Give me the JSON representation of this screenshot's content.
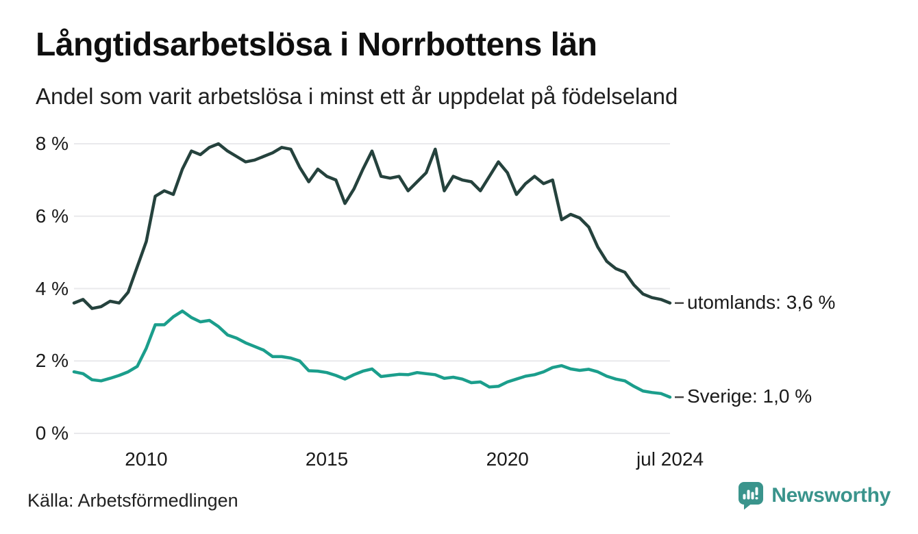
{
  "header": {
    "title": "Långtidsarbetslösa i Norrbottens län",
    "subtitle": "Andel som varit arbetslösa i minst ett år uppdelat på födelseland"
  },
  "footer": {
    "source": "Källa: Arbetsförmedlingen",
    "brand_name": "Newsworthy"
  },
  "colors": {
    "background": "#ffffff",
    "grid": "#e9e9ec",
    "text": "#1a1a1a",
    "brand_teal": "#3a948c",
    "connector": "#444444"
  },
  "chart_data": {
    "type": "line",
    "title": "Långtidsarbetslösa i Norrbottens län",
    "subtitle": "Andel som varit arbetslösa i minst ett år uppdelat på födelseland",
    "xlabel": "",
    "ylabel": "",
    "ylim": [
      0,
      8
    ],
    "xlim": [
      2008,
      2024.5
    ],
    "grid": "horizontal-only",
    "legend_position": "line-end-labels-right",
    "yticks": [
      {
        "value": 0,
        "label": "0 %"
      },
      {
        "value": 2,
        "label": "2 %"
      },
      {
        "value": 4,
        "label": "4 %"
      },
      {
        "value": 6,
        "label": "6 %"
      },
      {
        "value": 8,
        "label": "8 %"
      }
    ],
    "xticks": [
      {
        "value": 2010,
        "label": "2010"
      },
      {
        "value": 2015,
        "label": "2015"
      },
      {
        "value": 2020,
        "label": "2020"
      },
      {
        "value": 2024.5,
        "label": "jul 2024"
      }
    ],
    "x": [
      2008,
      2008.25,
      2008.5,
      2008.75,
      2009,
      2009.25,
      2009.5,
      2009.75,
      2010,
      2010.25,
      2010.5,
      2010.75,
      2011,
      2011.25,
      2011.5,
      2011.75,
      2012,
      2012.25,
      2012.5,
      2012.75,
      2013,
      2013.25,
      2013.5,
      2013.75,
      2014,
      2014.25,
      2014.5,
      2014.75,
      2015,
      2015.25,
      2015.5,
      2015.75,
      2016,
      2016.25,
      2016.5,
      2016.75,
      2017,
      2017.25,
      2017.5,
      2017.75,
      2018,
      2018.25,
      2018.5,
      2018.75,
      2019,
      2019.25,
      2019.5,
      2019.75,
      2020,
      2020.25,
      2020.5,
      2020.75,
      2021,
      2021.25,
      2021.5,
      2021.75,
      2022,
      2022.25,
      2022.5,
      2022.75,
      2023,
      2023.25,
      2023.5,
      2023.75,
      2024,
      2024.25,
      2024.5
    ],
    "series": [
      {
        "name": "utomlands",
        "end_label": "utomlands: 3,6 %",
        "last_value_text": "3,6 %",
        "last_value": 3.6,
        "color": "#25423d",
        "values": [
          3.6,
          3.7,
          3.45,
          3.5,
          3.65,
          3.6,
          3.9,
          4.6,
          5.3,
          6.55,
          6.7,
          6.6,
          7.3,
          7.8,
          7.7,
          7.9,
          8.0,
          7.8,
          7.65,
          7.5,
          7.55,
          7.65,
          7.75,
          7.9,
          7.85,
          7.35,
          6.95,
          7.3,
          7.1,
          7.0,
          6.35,
          6.75,
          7.3,
          7.8,
          7.1,
          7.05,
          7.1,
          6.7,
          6.95,
          7.2,
          7.85,
          6.7,
          7.1,
          7.0,
          6.95,
          6.7,
          7.1,
          7.5,
          7.2,
          6.6,
          6.9,
          7.1,
          6.9,
          7.0,
          5.9,
          6.05,
          5.95,
          5.7,
          5.15,
          4.75,
          4.55,
          4.45,
          4.1,
          3.85,
          3.75,
          3.7,
          3.6
        ]
      },
      {
        "name": "Sverige",
        "end_label": "Sverige: 1,0 %",
        "last_value_text": "1,0 %",
        "last_value": 1.0,
        "color": "#1b9e8c",
        "values": [
          1.7,
          1.65,
          1.48,
          1.45,
          1.52,
          1.6,
          1.7,
          1.85,
          2.35,
          3.0,
          3.0,
          3.22,
          3.38,
          3.2,
          3.08,
          3.12,
          2.95,
          2.72,
          2.63,
          2.5,
          2.4,
          2.3,
          2.12,
          2.12,
          2.08,
          2.0,
          1.73,
          1.72,
          1.68,
          1.6,
          1.5,
          1.62,
          1.72,
          1.78,
          1.57,
          1.6,
          1.63,
          1.62,
          1.68,
          1.65,
          1.62,
          1.52,
          1.55,
          1.5,
          1.4,
          1.42,
          1.28,
          1.3,
          1.42,
          1.5,
          1.58,
          1.62,
          1.7,
          1.82,
          1.87,
          1.78,
          1.74,
          1.77,
          1.7,
          1.58,
          1.5,
          1.45,
          1.3,
          1.17,
          1.13,
          1.1,
          1.0
        ]
      }
    ]
  }
}
